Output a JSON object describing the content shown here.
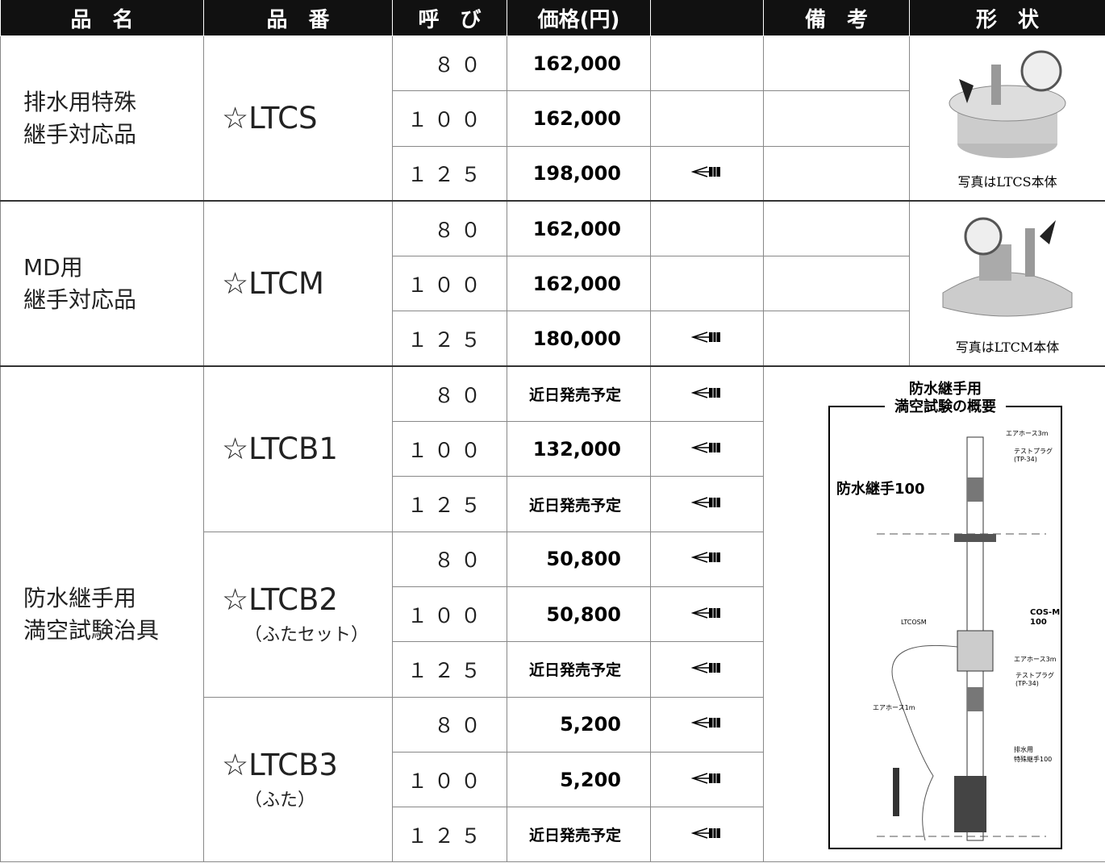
{
  "header": {
    "name": "品　名",
    "code": "品　番",
    "size": "呼　び",
    "price": "価格(円)",
    "remarks": "備　考",
    "shape": "形　状"
  },
  "groups": [
    {
      "name": [
        "排水用特殊",
        "継手対応品"
      ],
      "caption": "写真はLTCS本体",
      "products": [
        {
          "code": "☆LTCS",
          "rows": [
            {
              "size": "８０",
              "price": "162,000"
            },
            {
              "size": "１００",
              "price": "162,000"
            },
            {
              "size": "１２５",
              "price": "198,000"
            }
          ]
        }
      ]
    },
    {
      "name": [
        "MD用",
        "継手対応品"
      ],
      "caption": "写真はLTCM本体",
      "products": [
        {
          "code": "☆LTCM",
          "rows": [
            {
              "size": "８０",
              "price": "162,000"
            },
            {
              "size": "１００",
              "price": "162,000"
            },
            {
              "size": "１２５",
              "price": "180,000"
            }
          ]
        }
      ]
    },
    {
      "name": [
        "防水継手用",
        "満空試験治具"
      ],
      "diagram": {
        "title": [
          "防水継手用",
          "満空試験の概要"
        ],
        "labels": [
          "エアホース3m",
          "テストプラグ",
          "(TP-34)",
          "防水継手100",
          "COS-M",
          "100",
          "LTCOSM",
          "エアホース3m",
          "テストプラグ",
          "(TP-34)",
          "エアホース1m",
          "排水用",
          "特殊継手100"
        ]
      },
      "products": [
        {
          "code": "☆LTCB1",
          "rows": [
            {
              "size": "８０",
              "price": "近日発売予定"
            },
            {
              "size": "１００",
              "price": "132,000"
            },
            {
              "size": "１２５",
              "price": "近日発売予定"
            }
          ]
        },
        {
          "code": "☆LTCB2",
          "sub": "（ふたセット）",
          "rows": [
            {
              "size": "８０",
              "price": "50,800"
            },
            {
              "size": "１００",
              "price": "50,800"
            },
            {
              "size": "１２５",
              "price": "近日発売予定"
            }
          ]
        },
        {
          "code": "☆LTCB3",
          "sub": "（ふた）",
          "rows": [
            {
              "size": "８０",
              "price": "5,200"
            },
            {
              "size": "１００",
              "price": "5,200"
            },
            {
              "size": "１２５",
              "price": "近日発売予定"
            }
          ]
        }
      ]
    }
  ]
}
